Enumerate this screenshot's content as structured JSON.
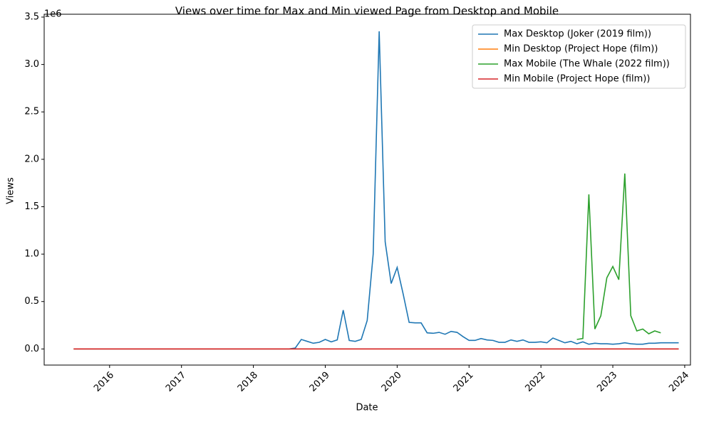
{
  "chart_data": {
    "type": "line",
    "title": "Views over time for Max and Min viewed Page from Desktop and Mobile",
    "x_label": "Date",
    "y_label": "Views",
    "y_offset_label": "1e6",
    "x": [
      "2015-07",
      "2015-08",
      "2015-09",
      "2015-10",
      "2015-11",
      "2015-12",
      "2016-01",
      "2016-02",
      "2016-03",
      "2016-04",
      "2016-05",
      "2016-06",
      "2016-07",
      "2016-08",
      "2016-09",
      "2016-10",
      "2016-11",
      "2016-12",
      "2017-01",
      "2017-02",
      "2017-03",
      "2017-04",
      "2017-05",
      "2017-06",
      "2017-07",
      "2017-08",
      "2017-09",
      "2017-10",
      "2017-11",
      "2017-12",
      "2018-01",
      "2018-02",
      "2018-03",
      "2018-04",
      "2018-05",
      "2018-06",
      "2018-07",
      "2018-08",
      "2018-09",
      "2018-10",
      "2018-11",
      "2018-12",
      "2019-01",
      "2019-02",
      "2019-03",
      "2019-04",
      "2019-05",
      "2019-06",
      "2019-07",
      "2019-08",
      "2019-09",
      "2019-10",
      "2019-11",
      "2019-12",
      "2020-01",
      "2020-02",
      "2020-03",
      "2020-04",
      "2020-05",
      "2020-06",
      "2020-07",
      "2020-08",
      "2020-09",
      "2020-10",
      "2020-11",
      "2020-12",
      "2021-01",
      "2021-02",
      "2021-03",
      "2021-04",
      "2021-05",
      "2021-06",
      "2021-07",
      "2021-08",
      "2021-09",
      "2021-10",
      "2021-11",
      "2021-12",
      "2022-01",
      "2022-02",
      "2022-03",
      "2022-04",
      "2022-05",
      "2022-06",
      "2022-07",
      "2022-08",
      "2022-09",
      "2022-10",
      "2022-11",
      "2022-12",
      "2023-01",
      "2023-02",
      "2023-03",
      "2023-04",
      "2023-05",
      "2023-06",
      "2023-07",
      "2023-08",
      "2023-09",
      "2023-10",
      "2023-11",
      "2023-12"
    ],
    "series": [
      {
        "name": "Max Desktop (Joker (2019 film))",
        "color": "#1f77b4",
        "values": [
          0,
          0,
          0,
          0,
          0,
          0,
          0,
          0,
          0,
          0,
          0,
          0,
          0,
          0,
          0,
          0,
          0,
          0,
          0,
          0,
          0,
          0,
          0,
          0,
          0,
          0,
          0,
          0,
          0,
          0,
          0,
          0,
          0,
          0,
          0,
          0,
          0,
          10000,
          100000,
          80000,
          60000,
          70000,
          100000,
          75000,
          95000,
          410000,
          90000,
          80000,
          100000,
          300000,
          1000000,
          3350000,
          1130000,
          690000,
          860000,
          580000,
          280000,
          275000,
          275000,
          170000,
          165000,
          175000,
          155000,
          185000,
          175000,
          130000,
          90000,
          90000,
          110000,
          95000,
          90000,
          70000,
          70000,
          95000,
          80000,
          95000,
          70000,
          70000,
          75000,
          65000,
          115000,
          90000,
          65000,
          80000,
          55000,
          75000,
          50000,
          60000,
          55000,
          55000,
          50000,
          55000,
          65000,
          55000,
          50000,
          50000,
          60000,
          60000,
          65000,
          65000,
          65000,
          65000
        ]
      },
      {
        "name": "Min Desktop (Project Hope (film))",
        "color": "#ff7f0e",
        "values": [
          0,
          0,
          0,
          0,
          0,
          0,
          0,
          0,
          0,
          0,
          0,
          0,
          0,
          0,
          0,
          0,
          0,
          0,
          0,
          0,
          0,
          0,
          0,
          0,
          0,
          0,
          0,
          0,
          0,
          0,
          0,
          0,
          0,
          0,
          0,
          0,
          0,
          0,
          0,
          0,
          0,
          0,
          0,
          0,
          0,
          0,
          0,
          0,
          0,
          0,
          0,
          0,
          0,
          0,
          0,
          0,
          0,
          0,
          0,
          0,
          0,
          0,
          0,
          0,
          0,
          0,
          0,
          0,
          0,
          0,
          0,
          0,
          0,
          0,
          0,
          0,
          0,
          0,
          0,
          0,
          0,
          0,
          0,
          0,
          0,
          0,
          0,
          0,
          0,
          0,
          0,
          0,
          0,
          0,
          0,
          0,
          0,
          0,
          0,
          0,
          0,
          0
        ]
      },
      {
        "name": "Max Mobile (The Whale (2022 film))",
        "color": "#2ca02c",
        "values": [
          null,
          null,
          null,
          null,
          null,
          null,
          null,
          null,
          null,
          null,
          null,
          null,
          null,
          null,
          null,
          null,
          null,
          null,
          null,
          null,
          null,
          null,
          null,
          null,
          null,
          null,
          null,
          null,
          null,
          null,
          null,
          null,
          null,
          null,
          null,
          null,
          null,
          null,
          null,
          null,
          null,
          null,
          null,
          null,
          null,
          null,
          null,
          null,
          null,
          null,
          null,
          null,
          null,
          null,
          null,
          null,
          null,
          null,
          null,
          null,
          null,
          null,
          null,
          null,
          null,
          null,
          null,
          null,
          null,
          null,
          null,
          null,
          null,
          null,
          null,
          null,
          null,
          null,
          null,
          null,
          null,
          null,
          null,
          null,
          100000,
          110000,
          1630000,
          210000,
          350000,
          750000,
          870000,
          730000,
          1850000,
          350000,
          190000,
          210000,
          160000,
          190000,
          170000,
          null,
          null,
          null
        ]
      },
      {
        "name": "Min Mobile (Project Hope (film))",
        "color": "#d62728",
        "values": [
          0,
          0,
          0,
          0,
          0,
          0,
          0,
          0,
          0,
          0,
          0,
          0,
          0,
          0,
          0,
          0,
          0,
          0,
          0,
          0,
          0,
          0,
          0,
          0,
          0,
          0,
          0,
          0,
          0,
          0,
          0,
          0,
          0,
          0,
          0,
          0,
          0,
          0,
          0,
          0,
          0,
          0,
          0,
          0,
          0,
          0,
          0,
          0,
          0,
          0,
          0,
          0,
          0,
          0,
          0,
          0,
          0,
          0,
          0,
          0,
          0,
          0,
          0,
          0,
          0,
          0,
          0,
          0,
          0,
          0,
          0,
          0,
          0,
          0,
          0,
          0,
          0,
          0,
          0,
          0,
          0,
          0,
          0,
          0,
          0,
          0,
          0,
          0,
          0,
          0,
          0,
          0,
          0,
          0,
          0,
          0,
          0,
          0,
          0,
          0,
          0,
          0
        ]
      }
    ],
    "xlim": [
      2015.09,
      2024.08
    ],
    "xticks": [
      2016,
      2017,
      2018,
      2019,
      2020,
      2021,
      2022,
      2023,
      2024
    ],
    "ylim": [
      -170000,
      3530000
    ],
    "yticks": [
      {
        "value": 0,
        "label": "0.0"
      },
      {
        "value": 500000,
        "label": "0.5"
      },
      {
        "value": 1000000,
        "label": "1.0"
      },
      {
        "value": 1500000,
        "label": "1.5"
      },
      {
        "value": 2000000,
        "label": "2.0"
      },
      {
        "value": 2500000,
        "label": "2.5"
      },
      {
        "value": 3000000,
        "label": "3.0"
      },
      {
        "value": 3500000,
        "label": "3.5"
      }
    ],
    "legend": "upper right"
  }
}
